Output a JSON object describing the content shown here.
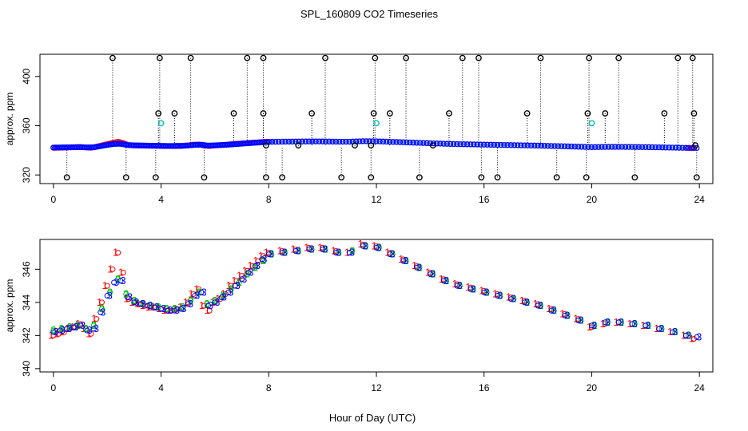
{
  "figure": {
    "title": "SPL_160809  CO2 Timeseries",
    "xlabel": "Hour of Day (UTC)"
  },
  "colors": {
    "series1": "#ff0000",
    "series2": "#00c000",
    "series3": "#0000ff",
    "outlier": "#000000",
    "flagged": "#00c0c0",
    "axis": "#000000"
  },
  "chart_data": [
    {
      "type": "scatter",
      "title": "",
      "xlabel": "",
      "ylabel": "approx. ppm",
      "xlim": [
        -0.5,
        24.5
      ],
      "ylim": [
        313,
        418
      ],
      "xticks": [
        0,
        4,
        8,
        12,
        16,
        20,
        24
      ],
      "yticks": [
        320,
        360,
        400
      ],
      "series": [
        {
          "name": "1",
          "points": [
            [
              0,
              342.0
            ],
            [
              0.2,
              342.1
            ],
            [
              0.4,
              342.2
            ],
            [
              0.6,
              342.4
            ],
            [
              0.8,
              342.5
            ],
            [
              1.0,
              342.7
            ],
            [
              1.2,
              342.4
            ],
            [
              1.4,
              342.1
            ],
            [
              1.6,
              343.0
            ],
            [
              1.8,
              344.0
            ],
            [
              2.0,
              345.0
            ],
            [
              2.2,
              346.0
            ],
            [
              2.4,
              347.0
            ],
            [
              2.6,
              345.8
            ],
            [
              2.8,
              344.2
            ],
            [
              3.0,
              344.0
            ],
            [
              3.2,
              343.9
            ],
            [
              3.4,
              343.8
            ],
            [
              3.6,
              343.7
            ],
            [
              3.8,
              343.7
            ],
            [
              4.0,
              343.6
            ],
            [
              4.2,
              343.5
            ],
            [
              4.4,
              343.5
            ],
            [
              4.6,
              343.6
            ],
            [
              4.8,
              343.7
            ],
            [
              5.0,
              344.0
            ],
            [
              5.2,
              344.5
            ],
            [
              5.4,
              344.8
            ],
            [
              5.6,
              343.8
            ],
            [
              5.8,
              343.5
            ],
            [
              6.0,
              344.0
            ],
            [
              6.2,
              344.2
            ],
            [
              6.4,
              344.5
            ],
            [
              6.6,
              345.0
            ],
            [
              6.8,
              345.3
            ],
            [
              7.0,
              345.6
            ],
            [
              7.2,
              345.9
            ],
            [
              7.4,
              346.2
            ],
            [
              7.6,
              346.5
            ],
            [
              7.8,
              346.8
            ],
            [
              8.0,
              347.0
            ],
            [
              8.5,
              347.1
            ],
            [
              9.0,
              347.2
            ],
            [
              9.5,
              347.3
            ],
            [
              10.0,
              347.3
            ],
            [
              10.5,
              347.1
            ],
            [
              11.0,
              347.0
            ],
            [
              11.5,
              347.5
            ],
            [
              12.0,
              347.4
            ],
            [
              12.5,
              347.0
            ],
            [
              13.0,
              346.6
            ],
            [
              13.5,
              346.2
            ],
            [
              14.0,
              345.8
            ],
            [
              14.5,
              345.4
            ],
            [
              15.0,
              345.1
            ],
            [
              15.5,
              344.9
            ],
            [
              16.0,
              344.7
            ],
            [
              16.5,
              344.5
            ],
            [
              17.0,
              344.3
            ],
            [
              17.5,
              344.1
            ],
            [
              18.0,
              343.9
            ],
            [
              18.5,
              343.6
            ],
            [
              19.0,
              343.3
            ],
            [
              19.5,
              343.0
            ],
            [
              20.0,
              342.5
            ],
            [
              20.5,
              342.7
            ],
            [
              21.0,
              342.8
            ],
            [
              21.5,
              342.7
            ],
            [
              22.0,
              342.6
            ],
            [
              22.5,
              342.4
            ],
            [
              23.0,
              342.2
            ],
            [
              23.5,
              342.0
            ],
            [
              23.8,
              341.8
            ]
          ]
        },
        {
          "name": "2",
          "points": [
            [
              0,
              342.3
            ],
            [
              0.3,
              342.4
            ],
            [
              0.6,
              342.5
            ],
            [
              0.9,
              342.6
            ],
            [
              1.2,
              342.4
            ],
            [
              1.5,
              342.6
            ],
            [
              1.8,
              343.6
            ],
            [
              2.1,
              344.6
            ],
            [
              2.4,
              345.4
            ],
            [
              2.7,
              344.5
            ],
            [
              3.0,
              344.1
            ],
            [
              3.3,
              343.9
            ],
            [
              3.6,
              343.8
            ],
            [
              3.9,
              343.7
            ],
            [
              4.2,
              343.6
            ],
            [
              4.5,
              343.6
            ],
            [
              4.8,
              343.7
            ],
            [
              5.1,
              344.1
            ],
            [
              5.4,
              344.6
            ],
            [
              5.7,
              343.9
            ],
            [
              6.0,
              344.1
            ],
            [
              6.3,
              344.4
            ],
            [
              6.6,
              344.8
            ],
            [
              6.9,
              345.2
            ],
            [
              7.2,
              345.7
            ],
            [
              7.5,
              346.1
            ],
            [
              7.8,
              346.5
            ],
            [
              8.1,
              346.9
            ],
            [
              8.6,
              347.0
            ],
            [
              9.1,
              347.1
            ],
            [
              9.6,
              347.2
            ],
            [
              10.1,
              347.2
            ],
            [
              10.6,
              347.0
            ],
            [
              11.1,
              347.1
            ],
            [
              11.6,
              347.4
            ],
            [
              12.1,
              347.3
            ],
            [
              12.6,
              346.9
            ],
            [
              13.1,
              346.5
            ],
            [
              13.6,
              346.1
            ],
            [
              14.1,
              345.7
            ],
            [
              14.6,
              345.3
            ],
            [
              15.1,
              345.0
            ],
            [
              15.6,
              344.8
            ],
            [
              16.1,
              344.6
            ],
            [
              16.6,
              344.4
            ],
            [
              17.1,
              344.2
            ],
            [
              17.6,
              344.0
            ],
            [
              18.1,
              343.8
            ],
            [
              18.6,
              343.5
            ],
            [
              19.1,
              343.2
            ],
            [
              19.6,
              342.9
            ],
            [
              20.1,
              342.6
            ],
            [
              20.6,
              342.8
            ],
            [
              21.1,
              342.8
            ],
            [
              21.6,
              342.7
            ],
            [
              22.1,
              342.6
            ],
            [
              22.6,
              342.4
            ],
            [
              23.1,
              342.2
            ],
            [
              23.6,
              342.0
            ]
          ]
        },
        {
          "name": "3",
          "points": [
            [
              0,
              342.2
            ],
            [
              0.25,
              342.3
            ],
            [
              0.5,
              342.4
            ],
            [
              0.75,
              342.5
            ],
            [
              1.0,
              342.6
            ],
            [
              1.25,
              342.3
            ],
            [
              1.5,
              342.4
            ],
            [
              1.75,
              343.4
            ],
            [
              2.0,
              344.4
            ],
            [
              2.25,
              345.2
            ],
            [
              2.5,
              345.3
            ],
            [
              2.75,
              344.3
            ],
            [
              3.0,
              344.0
            ],
            [
              3.25,
              343.9
            ],
            [
              3.5,
              343.8
            ],
            [
              3.75,
              343.7
            ],
            [
              4.0,
              343.6
            ],
            [
              4.25,
              343.5
            ],
            [
              4.5,
              343.5
            ],
            [
              4.75,
              343.6
            ],
            [
              5.0,
              343.9
            ],
            [
              5.25,
              344.4
            ],
            [
              5.5,
              344.6
            ],
            [
              5.75,
              343.8
            ],
            [
              6.0,
              344.0
            ],
            [
              6.25,
              344.3
            ],
            [
              6.5,
              344.6
            ],
            [
              6.75,
              345.0
            ],
            [
              7.0,
              345.4
            ],
            [
              7.25,
              345.8
            ],
            [
              7.5,
              346.2
            ],
            [
              7.75,
              346.6
            ],
            [
              8.0,
              346.9
            ],
            [
              8.5,
              347.0
            ],
            [
              9.0,
              347.1
            ],
            [
              9.5,
              347.2
            ],
            [
              10.0,
              347.2
            ],
            [
              10.5,
              347.0
            ],
            [
              11.0,
              347.0
            ],
            [
              11.5,
              347.4
            ],
            [
              12.0,
              347.3
            ],
            [
              12.5,
              346.9
            ],
            [
              13.0,
              346.5
            ],
            [
              13.5,
              346.1
            ],
            [
              14.0,
              345.7
            ],
            [
              14.5,
              345.3
            ],
            [
              15.0,
              345.0
            ],
            [
              15.5,
              344.8
            ],
            [
              16.0,
              344.6
            ],
            [
              16.5,
              344.4
            ],
            [
              17.0,
              344.2
            ],
            [
              17.5,
              344.0
            ],
            [
              18.0,
              343.8
            ],
            [
              18.5,
              343.5
            ],
            [
              19.0,
              343.2
            ],
            [
              19.5,
              342.9
            ],
            [
              20.0,
              342.6
            ],
            [
              20.5,
              342.8
            ],
            [
              21.0,
              342.8
            ],
            [
              21.5,
              342.7
            ],
            [
              22.0,
              342.6
            ],
            [
              22.5,
              342.4
            ],
            [
              23.0,
              342.2
            ],
            [
              23.5,
              342.0
            ],
            [
              23.9,
              341.9
            ]
          ]
        }
      ],
      "outliers": [
        [
          0.5,
          318
        ],
        [
          2.2,
          415
        ],
        [
          2.7,
          318
        ],
        [
          3.8,
          318
        ],
        [
          3.9,
          370
        ],
        [
          3.95,
          415
        ],
        [
          4.5,
          370
        ],
        [
          5.1,
          415
        ],
        [
          5.6,
          318
        ],
        [
          6.7,
          370
        ],
        [
          7.2,
          415
        ],
        [
          7.8,
          415
        ],
        [
          7.8,
          370
        ],
        [
          7.9,
          344
        ],
        [
          7.9,
          318
        ],
        [
          8.5,
          318
        ],
        [
          9.1,
          344
        ],
        [
          9.6,
          370
        ],
        [
          10.1,
          415
        ],
        [
          10.7,
          318
        ],
        [
          11.2,
          344
        ],
        [
          11.8,
          318
        ],
        [
          11.8,
          344
        ],
        [
          11.9,
          370
        ],
        [
          11.95,
          415
        ],
        [
          12.5,
          370
        ],
        [
          13.1,
          415
        ],
        [
          13.6,
          318
        ],
        [
          14.1,
          344
        ],
        [
          14.7,
          370
        ],
        [
          15.2,
          415
        ],
        [
          15.8,
          415
        ],
        [
          15.9,
          318
        ],
        [
          16.5,
          318
        ],
        [
          17.6,
          370
        ],
        [
          18.1,
          415
        ],
        [
          18.7,
          318
        ],
        [
          19.8,
          318
        ],
        [
          19.85,
          370
        ],
        [
          19.9,
          415
        ],
        [
          20.5,
          370
        ],
        [
          21.0,
          415
        ],
        [
          21.6,
          318
        ],
        [
          22.7,
          370
        ],
        [
          23.2,
          415
        ],
        [
          23.75,
          415
        ],
        [
          23.8,
          370
        ],
        [
          23.9,
          318
        ],
        [
          23.85,
          344
        ]
      ],
      "flagged": [
        [
          4.0,
          362
        ],
        [
          12.0,
          362
        ],
        [
          20.0,
          362
        ]
      ]
    },
    {
      "type": "scatter",
      "title": "",
      "xlabel": "Hour of Day (UTC)",
      "ylabel": "approx. ppm",
      "xlim": [
        -0.5,
        24.5
      ],
      "ylim": [
        339.8,
        347.8
      ],
      "xticks": [
        0,
        4,
        8,
        12,
        16,
        20,
        24
      ],
      "yticks": [
        340,
        342,
        344,
        346
      ],
      "series_ref": "same as panel 1 series 1, 2, 3",
      "markers": [
        "1",
        "2",
        "3"
      ]
    }
  ]
}
